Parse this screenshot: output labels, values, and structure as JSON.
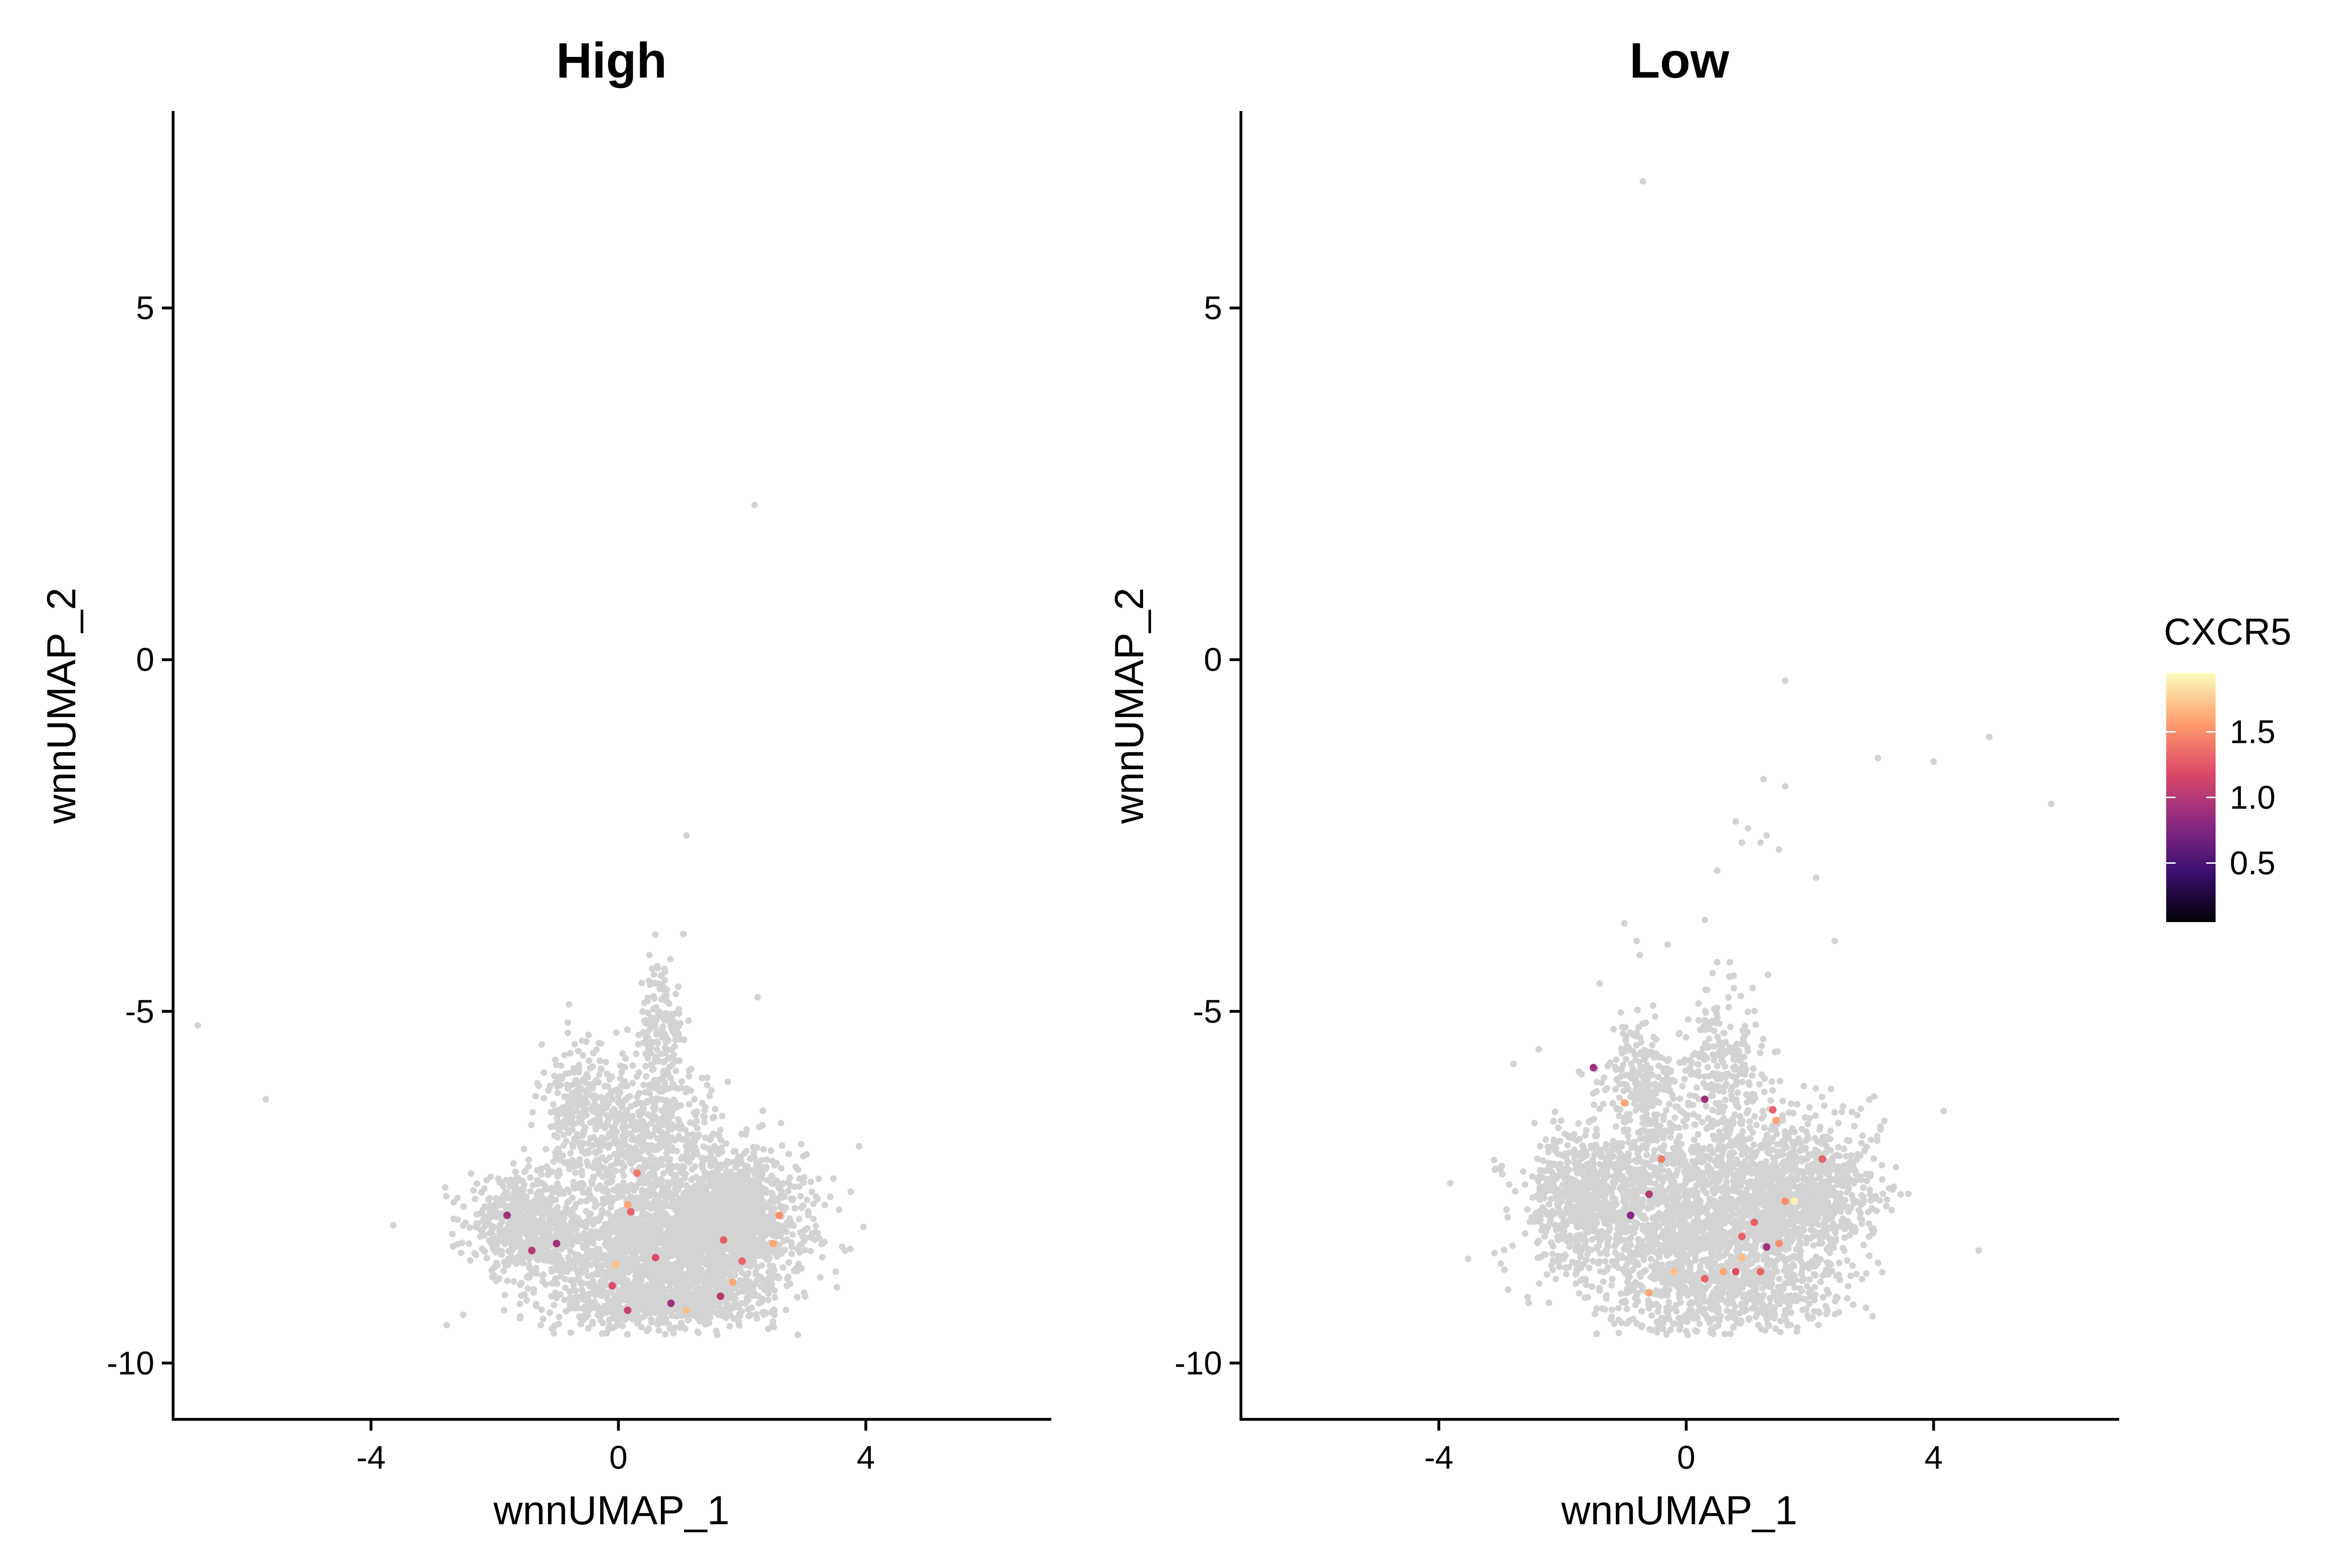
{
  "chart_data": [
    {
      "type": "scatter",
      "title": "High",
      "xlabel": "wnnUMAP_1",
      "ylabel": "wnnUMAP_2",
      "xlim": [
        -7.2,
        7.0
      ],
      "ylim": [
        -10.8,
        7.8
      ],
      "x_ticks": [
        -4,
        0,
        4
      ],
      "y_ticks": [
        -10,
        -5,
        0,
        5
      ],
      "background_color": "#d3d3d3",
      "outliers": [
        {
          "x": -6.8,
          "y": -5.2
        },
        {
          "x": -5.7,
          "y": -6.25
        },
        {
          "x": 2.2,
          "y": 2.2
        },
        {
          "x": 1.1,
          "y": -2.5
        },
        {
          "x": 1.05,
          "y": -3.9
        },
        {
          "x": 2.25,
          "y": -4.8
        },
        {
          "x": 0.5,
          "y": -4.2
        },
        {
          "x": 0.6,
          "y": -4.6
        },
        {
          "x": -0.8,
          "y": -4.9
        }
      ],
      "cloud": [
        {
          "x": 0.6,
          "y": -8.3,
          "sx": 1.05,
          "sy": 0.55,
          "n": 1900
        },
        {
          "x": 1.9,
          "y": -7.9,
          "sx": 0.55,
          "sy": 0.45,
          "n": 900
        },
        {
          "x": -1.6,
          "y": -8.0,
          "sx": 0.4,
          "sy": 0.3,
          "n": 420
        },
        {
          "x": 0.5,
          "y": -6.8,
          "sx": 0.6,
          "sy": 0.5,
          "n": 500
        },
        {
          "x": -0.6,
          "y": -6.4,
          "sx": 0.35,
          "sy": 0.45,
          "n": 260
        },
        {
          "x": 0.7,
          "y": -5.4,
          "sx": 0.18,
          "sy": 0.55,
          "n": 180
        },
        {
          "x": 0.8,
          "y": -9.1,
          "sx": 0.9,
          "sy": 0.2,
          "n": 500
        }
      ],
      "expressing_cells": [
        {
          "x": -1.8,
          "y": -7.9,
          "value": 0.9
        },
        {
          "x": -1.0,
          "y": -8.3,
          "value": 0.9
        },
        {
          "x": -1.4,
          "y": -8.4,
          "value": 1.0
        },
        {
          "x": 0.2,
          "y": -7.85,
          "value": 1.3
        },
        {
          "x": 0.3,
          "y": -7.3,
          "value": 1.4
        },
        {
          "x": 0.15,
          "y": -7.75,
          "value": 1.6
        },
        {
          "x": -0.05,
          "y": -8.6,
          "value": 1.7
        },
        {
          "x": -0.1,
          "y": -8.9,
          "value": 1.2
        },
        {
          "x": 0.15,
          "y": -9.25,
          "value": 1.1
        },
        {
          "x": 0.6,
          "y": -8.5,
          "value": 1.2
        },
        {
          "x": 0.85,
          "y": -9.15,
          "value": 0.9
        },
        {
          "x": 1.1,
          "y": -9.25,
          "value": 1.7
        },
        {
          "x": 1.7,
          "y": -8.25,
          "value": 1.3
        },
        {
          "x": 1.65,
          "y": -9.05,
          "value": 1.0
        },
        {
          "x": 1.85,
          "y": -8.85,
          "value": 1.6
        },
        {
          "x": 2.0,
          "y": -8.55,
          "value": 1.3
        },
        {
          "x": 2.5,
          "y": -8.3,
          "value": 1.6
        },
        {
          "x": 2.6,
          "y": -7.9,
          "value": 1.5
        }
      ]
    },
    {
      "type": "scatter",
      "title": "Low",
      "xlabel": "wnnUMAP_1",
      "ylabel": "wnnUMAP_2",
      "xlim": [
        -7.2,
        7.0
      ],
      "ylim": [
        -10.8,
        7.8
      ],
      "x_ticks": [
        -4,
        0,
        4
      ],
      "y_ticks": [
        -10,
        -5,
        0,
        5
      ],
      "background_color": "#d3d3d3",
      "outliers": [
        {
          "x": -0.7,
          "y": 6.8
        },
        {
          "x": 1.6,
          "y": -0.3
        },
        {
          "x": 3.1,
          "y": -1.4
        },
        {
          "x": 4.0,
          "y": -1.45
        },
        {
          "x": 4.9,
          "y": -1.1
        },
        {
          "x": 5.9,
          "y": -2.05
        },
        {
          "x": 1.25,
          "y": -1.7
        },
        {
          "x": 1.6,
          "y": -1.8
        },
        {
          "x": 0.8,
          "y": -2.3
        },
        {
          "x": 1.0,
          "y": -2.4
        },
        {
          "x": 1.3,
          "y": -2.5
        },
        {
          "x": 0.9,
          "y": -2.6
        },
        {
          "x": 1.2,
          "y": -2.6
        },
        {
          "x": 1.5,
          "y": -2.7
        },
        {
          "x": 0.5,
          "y": -3.0
        },
        {
          "x": 2.1,
          "y": -3.1
        },
        {
          "x": 0.3,
          "y": -3.7
        },
        {
          "x": -1.0,
          "y": -3.75
        },
        {
          "x": -0.3,
          "y": -4.05
        },
        {
          "x": 2.4,
          "y": -4.0
        },
        {
          "x": -0.8,
          "y": -4.0
        },
        {
          "x": -0.75,
          "y": -4.2
        }
      ],
      "cloud": [
        {
          "x": 0.2,
          "y": -7.8,
          "sx": 1.2,
          "sy": 0.75,
          "n": 2000
        },
        {
          "x": 1.9,
          "y": -7.6,
          "sx": 0.6,
          "sy": 0.5,
          "n": 700
        },
        {
          "x": -1.7,
          "y": -7.6,
          "sx": 0.45,
          "sy": 0.45,
          "n": 450
        },
        {
          "x": -0.7,
          "y": -6.0,
          "sx": 0.3,
          "sy": 0.5,
          "n": 220
        },
        {
          "x": 0.6,
          "y": -5.8,
          "sx": 0.3,
          "sy": 0.55,
          "n": 220
        },
        {
          "x": 0.6,
          "y": -9.0,
          "sx": 0.8,
          "sy": 0.35,
          "n": 500
        }
      ],
      "expressing_cells": [
        {
          "x": -1.5,
          "y": -5.8,
          "value": 0.9
        },
        {
          "x": -0.9,
          "y": -7.9,
          "value": 0.8
        },
        {
          "x": -0.6,
          "y": -7.6,
          "value": 1.0
        },
        {
          "x": -0.4,
          "y": -7.1,
          "value": 1.4
        },
        {
          "x": -1.0,
          "y": -6.3,
          "value": 1.6
        },
        {
          "x": -0.2,
          "y": -8.7,
          "value": 1.7
        },
        {
          "x": -0.6,
          "y": -9.0,
          "value": 1.6
        },
        {
          "x": 0.3,
          "y": -6.25,
          "value": 0.9
        },
        {
          "x": 0.3,
          "y": -8.8,
          "value": 1.3
        },
        {
          "x": 0.6,
          "y": -8.7,
          "value": 1.6
        },
        {
          "x": 0.8,
          "y": -8.7,
          "value": 1.2
        },
        {
          "x": 0.9,
          "y": -8.2,
          "value": 1.3
        },
        {
          "x": 0.9,
          "y": -8.5,
          "value": 1.7
        },
        {
          "x": 1.1,
          "y": -8.0,
          "value": 1.3
        },
        {
          "x": 1.2,
          "y": -8.7,
          "value": 1.3
        },
        {
          "x": 1.3,
          "y": -8.35,
          "value": 0.9
        },
        {
          "x": 1.4,
          "y": -6.4,
          "value": 1.3
        },
        {
          "x": 1.45,
          "y": -6.55,
          "value": 1.6
        },
        {
          "x": 1.5,
          "y": -8.3,
          "value": 1.5
        },
        {
          "x": 1.6,
          "y": -7.7,
          "value": 1.5
        },
        {
          "x": 1.75,
          "y": -7.7,
          "value": 1.9
        },
        {
          "x": 2.2,
          "y": -7.1,
          "value": 1.3
        }
      ]
    }
  ],
  "legend": {
    "title": "CXCR5",
    "min": 0.05,
    "max": 1.95,
    "ticks": [
      0.5,
      1.0,
      1.5
    ],
    "tick_labels": [
      "0.5",
      "1.0",
      "1.5"
    ],
    "colormap": [
      "#000004",
      "#3b0f70",
      "#8c2981",
      "#de4968",
      "#fe9f6d",
      "#fcfdbf"
    ]
  }
}
